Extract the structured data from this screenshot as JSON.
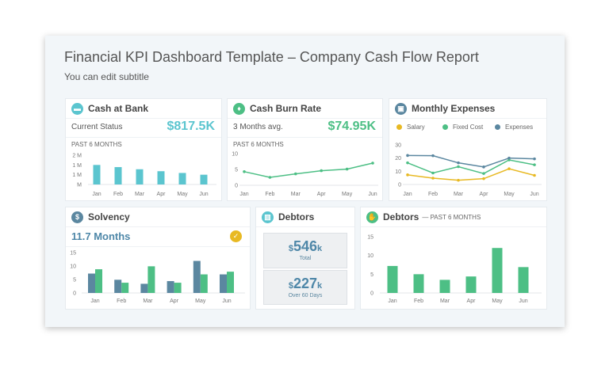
{
  "header": {
    "title": "Financial KPI Dashboard Template – Company Cash Flow Report",
    "subtitle": "You can edit subtitle"
  },
  "colors": {
    "teal": "#5bc5cf",
    "green": "#4dbf85",
    "blue": "#5b87a0",
    "yellow": "#e8b923",
    "value_blue": "#4e87a8"
  },
  "cash_at_bank": {
    "title": "Cash at Bank",
    "icon": "briefcase-icon",
    "label": "Current Status",
    "value": "$817.5K",
    "period": "PAST 6 MONTHS"
  },
  "cash_burn": {
    "title": "Cash Burn Rate",
    "icon": "flame-icon",
    "label": "3 Months avg.",
    "value": "$74.95K",
    "period": "PAST 6 MONTHS"
  },
  "monthly_expenses": {
    "title": "Monthly Expenses",
    "icon": "money-icon",
    "legend": [
      "Salary",
      "Fixed Cost",
      "Expenses"
    ]
  },
  "solvency": {
    "title": "Solvency",
    "icon": "dollar-icon",
    "value": "11.7 Months",
    "status_icon": "check-icon"
  },
  "debtors": {
    "title": "Debtors",
    "icon": "chart-icon",
    "total": {
      "currency": "$",
      "amount": "546",
      "unit": "k",
      "label": "Total"
    },
    "over60": {
      "currency": "$",
      "amount": "227",
      "unit": "k",
      "label": "Over 60 Days"
    }
  },
  "debtors_chart": {
    "title": "Debtors",
    "suffix": "— PAST 6 MONTHS",
    "icon": "hand-money-icon"
  },
  "chart_data": [
    {
      "id": "cash",
      "type": "bar",
      "categories": [
        "Jan",
        "Feb",
        "Mar",
        "Apr",
        "May",
        "Jun"
      ],
      "yticks": [
        "M",
        "1 M",
        "1 M",
        "2 M"
      ],
      "ylim": [
        0,
        1.5
      ],
      "tick_values": [
        0,
        0.5,
        1,
        1.5
      ],
      "series": [
        {
          "values": [
            1.0,
            0.89,
            0.78,
            0.68,
            0.59,
            0.5
          ],
          "color": "#5bc5cf"
        }
      ]
    },
    {
      "id": "burn",
      "type": "line",
      "categories": [
        "Jan",
        "Feb",
        "Mar",
        "Apr",
        "May",
        "Jun"
      ],
      "yticks": [
        "0",
        "5",
        "10"
      ],
      "tick_values": [
        0,
        5,
        10
      ],
      "ylim": [
        0,
        10
      ],
      "series": [
        {
          "values": [
            4.3,
            2.5,
            3.6,
            4.6,
            5.1,
            7.0
          ],
          "color": "#4dbf85"
        }
      ]
    },
    {
      "id": "exp",
      "type": "line",
      "categories": [
        "Jan",
        "Feb",
        "Mar",
        "Apr",
        "May",
        "Jun"
      ],
      "yticks": [
        "0",
        "10",
        "20",
        "30"
      ],
      "tick_values": [
        0,
        10,
        20,
        30
      ],
      "ylim": [
        0,
        30
      ],
      "series": [
        {
          "name": "Salary",
          "values": [
            7.3,
            4.8,
            3.2,
            4.4,
            11.9,
            6.9
          ],
          "color": "#e8b923"
        },
        {
          "name": "Fixed Cost",
          "values": [
            16.4,
            8.7,
            13.5,
            8.3,
            18.6,
            14.9
          ],
          "color": "#4dbf85"
        },
        {
          "name": "Expenses",
          "values": [
            22,
            21.8,
            16.4,
            13.3,
            20,
            19.4
          ],
          "color": "#5b87a0"
        }
      ]
    },
    {
      "id": "solv",
      "type": "bar",
      "categories": [
        "Jan",
        "Feb",
        "Mar",
        "Apr",
        "May",
        "Jun"
      ],
      "yticks": [
        "0",
        "5",
        "10",
        "15"
      ],
      "tick_values": [
        0,
        5,
        10,
        15
      ],
      "ylim": [
        0,
        15
      ],
      "series": [
        {
          "values": [
            7.2,
            4.9,
            3.4,
            4.4,
            11.9,
            6.9
          ],
          "color": "#5b87a0"
        },
        {
          "values": [
            8.8,
            3.8,
            9.9,
            3.8,
            6.9,
            7.9
          ],
          "color": "#4dbf85"
        }
      ]
    },
    {
      "id": "debt",
      "type": "bar",
      "categories": [
        "Jan",
        "Feb",
        "Mar",
        "Apr",
        "May",
        "Jun"
      ],
      "yticks": [
        "0",
        "5",
        "10",
        "15"
      ],
      "tick_values": [
        0,
        5,
        10,
        15
      ],
      "ylim": [
        0,
        15
      ],
      "series": [
        {
          "values": [
            7.2,
            5.0,
            3.5,
            4.4,
            12.0,
            6.9
          ],
          "color": "#4dbf85"
        }
      ]
    }
  ]
}
